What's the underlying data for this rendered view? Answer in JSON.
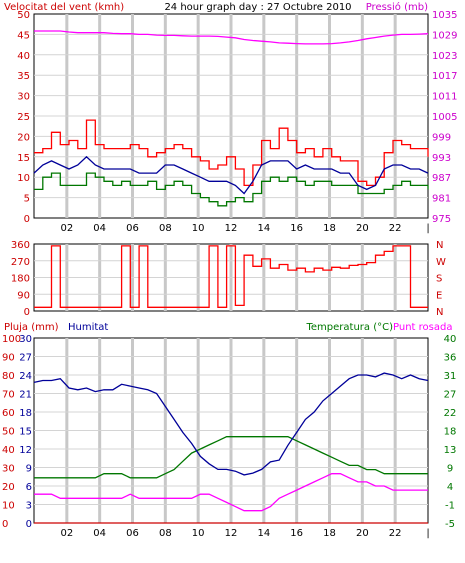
{
  "chart_data": [
    {
      "type": "line",
      "title": "24 hour graph day : 27 Octubre 2010",
      "ylabel": "Velocitat del vent (kmh)",
      "y2label": "Pressió (mb)",
      "x_ticks": [
        "02",
        "04",
        "06",
        "08",
        "10",
        "12",
        "14",
        "16",
        "18",
        "20",
        "22",
        "|"
      ],
      "ylim": [
        0,
        50
      ],
      "y_ticks": [
        "0",
        "5",
        "10",
        "15",
        "20",
        "25",
        "30",
        "35",
        "40",
        "45",
        "50"
      ],
      "y2lim": [
        975,
        1035
      ],
      "y2_ticks": [
        "975",
        "981",
        "987",
        "993",
        "999",
        "1005",
        "1011",
        "1017",
        "1023",
        "1029",
        "1035"
      ],
      "grid": true,
      "colors": {
        "gust": "#ff0000",
        "wind": "#000099",
        "avg": "#007700",
        "pressure": "#ff00ff",
        "left_axis": "#cc0000",
        "right_axis": "#cc00cc"
      },
      "series": [
        {
          "key": "gust",
          "values": [
            16,
            17,
            21,
            18,
            19,
            17,
            24,
            18,
            17,
            17,
            17,
            18,
            17,
            15,
            16,
            17,
            18,
            17,
            15,
            14,
            12,
            13,
            15,
            12,
            8,
            13,
            19,
            17,
            22,
            19,
            16,
            17,
            15,
            17,
            15,
            14,
            14,
            9,
            8,
            10,
            16,
            19,
            18,
            17,
            17,
            15
          ]
        },
        {
          "key": "wind",
          "values": [
            11,
            13,
            14,
            13,
            12,
            13,
            15,
            13,
            12,
            12,
            12,
            12,
            11,
            11,
            11,
            13,
            13,
            12,
            11,
            10,
            9,
            9,
            9,
            8,
            6,
            9,
            13,
            14,
            14,
            14,
            12,
            13,
            12,
            12,
            12,
            11,
            11,
            8,
            7,
            8,
            12,
            13,
            13,
            12,
            12,
            11
          ]
        },
        {
          "key": "avg",
          "values": [
            7,
            10,
            11,
            8,
            8,
            8,
            11,
            10,
            9,
            8,
            9,
            8,
            8,
            9,
            7,
            8,
            9,
            8,
            6,
            5,
            4,
            3,
            4,
            5,
            4,
            6,
            9,
            10,
            9,
            10,
            9,
            8,
            9,
            9,
            8,
            8,
            8,
            6,
            6,
            6,
            7,
            8,
            9,
            8,
            8,
            7
          ]
        },
        {
          "key": "pressure",
          "values": [
            1030,
            1030,
            1030,
            1030,
            1029.7,
            1029.5,
            1029.5,
            1029.5,
            1029.5,
            1029.3,
            1029.2,
            1029.2,
            1029,
            1029,
            1028.8,
            1028.7,
            1028.7,
            1028.6,
            1028.5,
            1028.5,
            1028.5,
            1028.4,
            1028.2,
            1028,
            1027.5,
            1027.2,
            1027,
            1026.8,
            1026.5,
            1026.4,
            1026.3,
            1026.2,
            1026.2,
            1026.2,
            1026.3,
            1026.5,
            1026.8,
            1027.2,
            1027.7,
            1028.1,
            1028.5,
            1028.8,
            1029,
            1029,
            1029.1,
            1029.2
          ]
        }
      ]
    },
    {
      "type": "line",
      "series_label_right": [
        "N",
        "W",
        "S",
        "E",
        "N"
      ],
      "ylim": [
        0,
        360
      ],
      "y_ticks": [
        "0",
        "90",
        "180",
        "270",
        "360"
      ],
      "color": "#ff0000",
      "series": [
        {
          "key": "direction",
          "values": [
            20,
            20,
            350,
            20,
            20,
            20,
            20,
            20,
            20,
            20,
            350,
            20,
            350,
            20,
            20,
            20,
            20,
            20,
            20,
            20,
            350,
            20,
            350,
            30,
            300,
            240,
            280,
            230,
            250,
            220,
            230,
            210,
            230,
            220,
            235,
            230,
            245,
            250,
            260,
            300,
            320,
            350,
            350,
            20,
            20,
            20
          ]
        }
      ]
    },
    {
      "type": "line",
      "ylabel": "Pluja (mm)",
      "y2label": "Humitat",
      "y3label": "Temperatura (°C)",
      "y4label": "Punt rosada",
      "ylim": [
        0,
        100
      ],
      "y_ticks": [
        "0",
        "10",
        "20",
        "30",
        "40",
        "50",
        "60",
        "70",
        "80",
        "90",
        "100"
      ],
      "rain_ticks": [
        "0",
        "3",
        "6",
        "9",
        "12",
        "15",
        "18",
        "21",
        "24",
        "27",
        "30"
      ],
      "y2lim": [
        -5,
        40
      ],
      "y2_ticks": [
        "-5",
        "-1",
        "4",
        "9",
        "13",
        "18",
        "22",
        "27",
        "31",
        "36",
        "40"
      ],
      "x_ticks": [
        "02",
        "04",
        "06",
        "08",
        "10",
        "12",
        "14",
        "16",
        "18",
        "20",
        "22",
        "|"
      ],
      "colors": {
        "rain": "#cc0000",
        "humidity": "#000099",
        "temperature": "#007700",
        "dewpoint": "#ff00ff",
        "left_axis": "#cc0000",
        "right_axis": "#007700"
      },
      "series": [
        {
          "key": "rain",
          "values": [
            0,
            0,
            0,
            0,
            0,
            0,
            0,
            0,
            0,
            0,
            0,
            0,
            0,
            0,
            0,
            0,
            0,
            0,
            0,
            0,
            0,
            0,
            0,
            0,
            0,
            0,
            0,
            0,
            0,
            0,
            0,
            0,
            0,
            0,
            0,
            0,
            0,
            0,
            0,
            0,
            0,
            0,
            0,
            0,
            0,
            0
          ]
        },
        {
          "key": "humidity",
          "values": [
            76,
            77,
            77,
            78,
            73,
            72,
            73,
            71,
            72,
            72,
            75,
            74,
            73,
            72,
            70,
            63,
            56,
            49,
            43,
            36,
            32,
            29,
            29,
            28,
            26,
            27,
            29,
            33,
            34,
            42,
            49,
            56,
            60,
            66,
            70,
            74,
            78,
            80,
            80,
            79,
            81,
            80,
            78,
            80,
            78,
            77
          ]
        },
        {
          "key": "temperature",
          "values": [
            6,
            6,
            6,
            6,
            6,
            6,
            6,
            6,
            7,
            7,
            7,
            6,
            6,
            6,
            6,
            7,
            8,
            10,
            12,
            13,
            14,
            15,
            16,
            16,
            16,
            16,
            16,
            16,
            16,
            16,
            15,
            14,
            13,
            12,
            11,
            10,
            9,
            9,
            8,
            8,
            7,
            7,
            7,
            7,
            7,
            7
          ]
        },
        {
          "key": "dewpoint",
          "values": [
            2,
            2,
            2,
            1,
            1,
            1,
            1,
            1,
            1,
            1,
            1,
            2,
            1,
            1,
            1,
            1,
            1,
            1,
            1,
            2,
            2,
            1,
            0,
            -1,
            -2,
            -2,
            -2,
            -1,
            1,
            2,
            3,
            4,
            5,
            6,
            7,
            7,
            6,
            5,
            5,
            4,
            4,
            3,
            3,
            3,
            3,
            3
          ]
        }
      ]
    }
  ]
}
